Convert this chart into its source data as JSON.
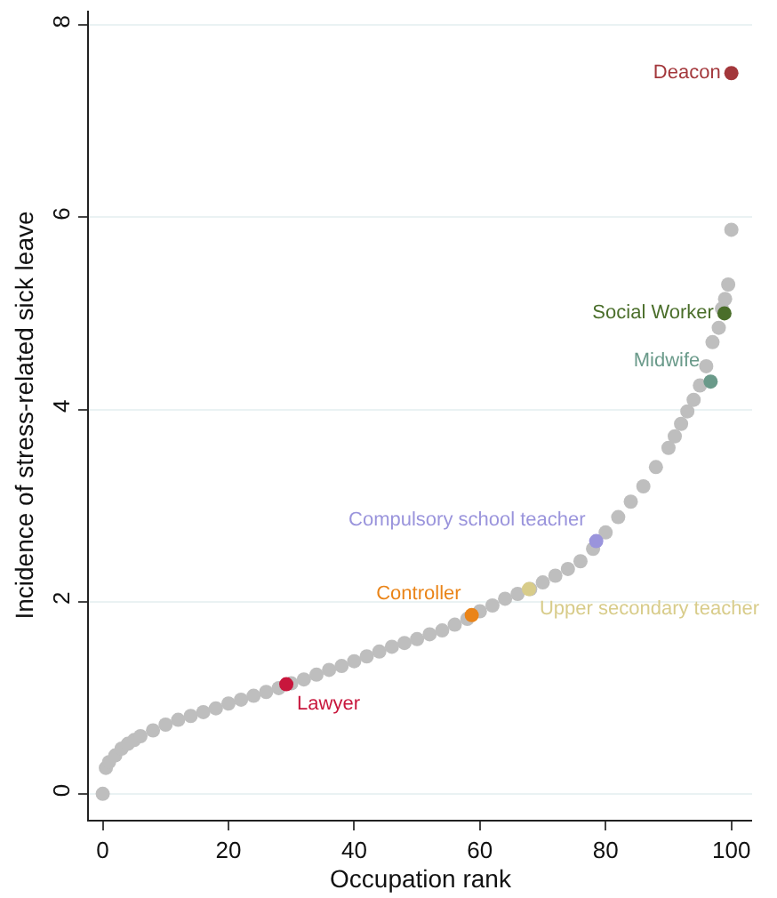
{
  "chart_data": {
    "type": "scatter",
    "xlabel": "Occupation rank",
    "ylabel": "Incidence of stress-related sick leave",
    "xlim": [
      -2.2,
      103.3
    ],
    "ylim": [
      -0.27,
      8.15
    ],
    "xticks": [
      0,
      20,
      40,
      60,
      80,
      100
    ],
    "yticks": [
      0,
      2,
      4,
      6,
      8
    ],
    "grid": "y",
    "marker": "circle",
    "legend": false,
    "series": [
      {
        "color": "#bebebe",
        "x": [
          0,
          0.5,
          1,
          2,
          3,
          4,
          5,
          6,
          8,
          10,
          12,
          14,
          16,
          18,
          20,
          22,
          24,
          26,
          28,
          30,
          32,
          34,
          36,
          38,
          40,
          42,
          44,
          46,
          48,
          50,
          52,
          54,
          56,
          58,
          60,
          62,
          64,
          66,
          68,
          70,
          72,
          74,
          76,
          78,
          80,
          82,
          84,
          86,
          88,
          90,
          91,
          92,
          93,
          94,
          95,
          96,
          97,
          98,
          98.5,
          99,
          99.5,
          100
        ],
        "values": [
          0,
          0.27,
          0.33,
          0.4,
          0.47,
          0.52,
          0.56,
          0.6,
          0.66,
          0.72,
          0.77,
          0.81,
          0.85,
          0.89,
          0.94,
          0.98,
          1.02,
          1.06,
          1.1,
          1.15,
          1.19,
          1.24,
          1.29,
          1.33,
          1.38,
          1.43,
          1.48,
          1.53,
          1.57,
          1.61,
          1.66,
          1.7,
          1.76,
          1.82,
          1.9,
          1.96,
          2.03,
          2.08,
          2.13,
          2.2,
          2.27,
          2.34,
          2.42,
          2.55,
          2.72,
          2.88,
          3.04,
          3.2,
          3.4,
          3.6,
          3.72,
          3.85,
          3.98,
          4.1,
          4.25,
          4.45,
          4.7,
          4.85,
          5.05,
          5.15,
          5.3,
          5.87
        ]
      },
      {
        "name": "Deacon",
        "color": "#a3373b",
        "x": [
          100
        ],
        "values": [
          7.5
        ]
      },
      {
        "name": "Social Worker",
        "color": "#4a6e2a",
        "x": [
          98.9
        ],
        "values": [
          5.0
        ]
      },
      {
        "name": "Midwife",
        "color": "#6a9a8a",
        "x": [
          96.7
        ],
        "values": [
          4.29
        ]
      },
      {
        "name": "Compulsory school teacher",
        "color": "#9a94dc",
        "x": [
          78.5
        ],
        "values": [
          2.63
        ]
      },
      {
        "name": "Upper secondary teacher",
        "color": "#d8cc8a",
        "x": [
          67.8
        ],
        "values": [
          2.13
        ]
      },
      {
        "name": "Controller",
        "color": "#ea8418",
        "x": [
          58.7
        ],
        "values": [
          1.86
        ]
      },
      {
        "name": "Lawyer",
        "color": "#c8163c",
        "x": [
          29.2
        ],
        "values": [
          1.14
        ]
      }
    ]
  }
}
